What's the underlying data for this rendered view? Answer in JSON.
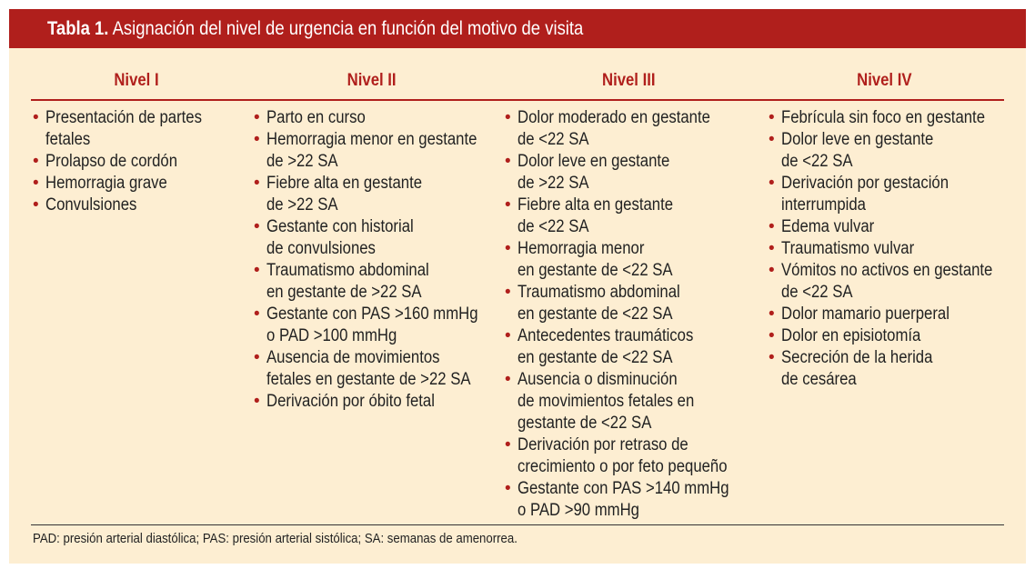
{
  "title": {
    "label": "Tabla 1.",
    "text": "Asignación del nivel de urgencia en función del motivo de visita"
  },
  "colors": {
    "accent": "#b01f1c",
    "background": "#fdeed2"
  },
  "columns": [
    {
      "heading": "Nivel I",
      "items": [
        [
          "Presentación de partes",
          "fetales"
        ],
        [
          "Prolapso de cordón"
        ],
        [
          "Hemorragia grave"
        ],
        [
          "Convulsiones"
        ]
      ]
    },
    {
      "heading": "Nivel II",
      "items": [
        [
          "Parto en curso"
        ],
        [
          "Hemorragia menor en gestante",
          "de >22 SA"
        ],
        [
          "Fiebre alta en gestante",
          "de >22 SA"
        ],
        [
          "Gestante con historial",
          "de convulsiones"
        ],
        [
          "Traumatismo abdominal",
          "en gestante de >22 SA"
        ],
        [
          "Gestante con PAS >160 mmHg",
          "o PAD >100 mmHg"
        ],
        [
          "Ausencia de movimientos",
          "fetales en gestante de >22 SA"
        ],
        [
          "Derivación por óbito fetal"
        ]
      ]
    },
    {
      "heading": "Nivel III",
      "items": [
        [
          "Dolor moderado en gestante",
          "de <22 SA"
        ],
        [
          "Dolor leve en gestante",
          "de >22 SA"
        ],
        [
          "Fiebre alta en gestante",
          "de <22 SA"
        ],
        [
          "Hemorragia menor",
          "en gestante de <22 SA"
        ],
        [
          "Traumatismo abdominal",
          "en gestante de <22 SA"
        ],
        [
          "Antecedentes traumáticos",
          "en gestante de <22 SA"
        ],
        [
          "Ausencia o disminución",
          "de movimientos fetales en",
          "gestante de <22 SA"
        ],
        [
          "Derivación por retraso de",
          "crecimiento o por feto pequeño"
        ],
        [
          "Gestante con PAS >140 mmHg",
          "o PAD >90 mmHg"
        ]
      ]
    },
    {
      "heading": "Nivel IV",
      "items": [
        [
          "Febrícula sin foco en gestante"
        ],
        [
          "Dolor leve en gestante",
          "de <22 SA"
        ],
        [
          "Derivación por gestación",
          "interrumpida"
        ],
        [
          "Edema vulvar"
        ],
        [
          "Traumatismo vulvar"
        ],
        [
          "Vómitos no activos en gestante",
          "de <22 SA"
        ],
        [
          "Dolor mamario puerperal"
        ],
        [
          "Dolor en episiotomía"
        ],
        [
          "Secreción de la herida",
          "de cesárea"
        ]
      ]
    }
  ],
  "footnote": "PAD: presión arterial diastólica; PAS: presión arterial sistólica; SA: semanas de amenorrea."
}
